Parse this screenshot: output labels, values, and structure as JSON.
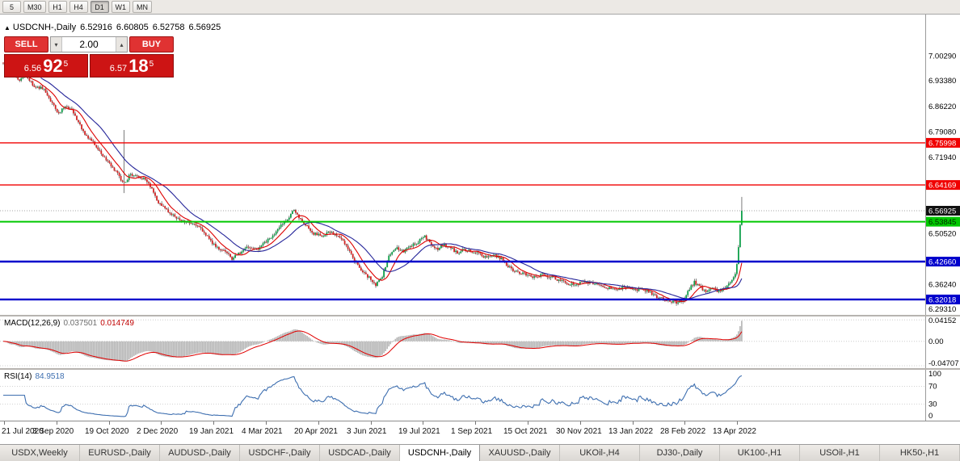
{
  "toolbar": {
    "timeframes": [
      {
        "label": "5",
        "active": false
      },
      {
        "label": "M30",
        "active": false
      },
      {
        "label": "H1",
        "active": false
      },
      {
        "label": "H4",
        "active": false
      },
      {
        "label": "D1",
        "active": true
      },
      {
        "label": "W1",
        "active": false
      },
      {
        "label": "MN",
        "active": false
      }
    ]
  },
  "chart": {
    "marker": "▲",
    "symbol_title": "USDCNH-,Daily",
    "ohlc": {
      "open": "6.52916",
      "high": "6.60805",
      "low": "6.52758",
      "close": "6.56925"
    }
  },
  "trade_panel": {
    "sell_label": "SELL",
    "buy_label": "BUY",
    "volume": "2.00",
    "volume_up_icon": "▴",
    "volume_down_icon": "▾",
    "sell_price": {
      "prefix": "6.56",
      "big": "92",
      "sup": "5"
    },
    "buy_price": {
      "prefix": "6.57",
      "big": "18",
      "sup": "5"
    }
  },
  "price_axis": {
    "ticks": [
      "7.00290",
      "6.93380",
      "6.86220",
      "6.79080",
      "6.71940",
      "6.50520",
      "6.36240",
      "6.29310"
    ],
    "current": {
      "value": "6.56925",
      "bg": "#111111",
      "fg": "#ffffff"
    }
  },
  "levels": [
    {
      "label": "6.75998",
      "value": 6.75998,
      "color": "#f00000",
      "text_color": "#ffffff",
      "width": 1.4
    },
    {
      "label": "6.64169",
      "value": 6.64169,
      "color": "#f00000",
      "text_color": "#ffffff",
      "width": 1.4
    },
    {
      "label": "6.53845",
      "value": 6.53845,
      "color": "#00c800",
      "text_color": "#002b00",
      "width": 2
    },
    {
      "label": "6.42660",
      "value": 6.4266,
      "color": "#0000cc",
      "text_color": "#ffffff",
      "width": 2.4
    },
    {
      "label": "6.32018",
      "value": 6.32018,
      "color": "#0000cc",
      "text_color": "#ffffff",
      "width": 2.4
    }
  ],
  "indicators": {
    "macd": {
      "name": "MACD(12,26,9)",
      "value_main": "0.037501",
      "value_signal": "0.014749",
      "axis": [
        {
          "label": "0.04152",
          "v": 0.04152
        },
        {
          "label": "0.00",
          "v": 0
        },
        {
          "label": "-0.04707",
          "v": -0.04707
        }
      ]
    },
    "rsi": {
      "name": "RSI(14)",
      "value": "84.9518",
      "axis": [
        "100",
        "70",
        "30",
        "0"
      ],
      "level_lines": [
        70,
        30
      ]
    }
  },
  "date_axis": [
    "21 Jul 2020",
    "3 Sep 2020",
    "19 Oct 2020",
    "2 Dec 2020",
    "19 Jan 2021",
    "4 Mar 2021",
    "20 Apr 2021",
    "3 Jun 2021",
    "19 Jul 2021",
    "1 Sep 2021",
    "15 Oct 2021",
    "30 Nov 2021",
    "13 Jan 2022",
    "28 Feb 2022",
    "13 Apr 2022"
  ],
  "tabs": [
    {
      "label": "USDX,Weekly",
      "active": false
    },
    {
      "label": "EURUSD-,Daily",
      "active": false
    },
    {
      "label": "AUDUSD-,Daily",
      "active": false
    },
    {
      "label": "USDCHF-,Daily",
      "active": false
    },
    {
      "label": "USDCAD-,Daily",
      "active": false
    },
    {
      "label": "USDCNH-,Daily",
      "active": true
    },
    {
      "label": "XAUUSD-,Daily",
      "active": false
    },
    {
      "label": "UKOil-,H4",
      "active": false
    },
    {
      "label": "DJ30-,Daily",
      "active": false
    },
    {
      "label": "UK100-,H1",
      "active": false
    },
    {
      "label": "USOil-,H1",
      "active": false
    },
    {
      "label": "HK50-,H1",
      "active": false
    }
  ],
  "chart_data": {
    "type": "candlestick",
    "symbol": "USDCNH",
    "timeframe": "Daily",
    "x_range_dates": [
      "21 Jul 2020",
      "13 Apr 2022"
    ],
    "price_axis_max": 7.12,
    "price_axis_min": 6.277,
    "count": 453,
    "seed": 12,
    "spike_index": 74,
    "spike_up": 0.145,
    "spike_down": 0.03,
    "last_candle": {
      "open": 6.52916,
      "high": 6.60805,
      "low": 6.52758,
      "close": 6.56925
    },
    "current_price": 6.56925,
    "ma_fast_period": 10,
    "ma_slow_period": 24,
    "macd_view": [
      0.048,
      -0.0517
    ],
    "rsi_last": 84.9518,
    "level_values": [
      6.75998,
      6.64169,
      6.53845,
      6.4266,
      6.32018
    ],
    "anchors": [
      [
        0,
        6.985
      ],
      [
        3,
        6.952
      ],
      [
        6,
        6.958
      ],
      [
        10,
        6.936
      ],
      [
        14,
        6.952
      ],
      [
        18,
        6.922
      ],
      [
        22,
        6.916
      ],
      [
        26,
        6.904
      ],
      [
        30,
        6.868
      ],
      [
        34,
        6.842
      ],
      [
        38,
        6.864
      ],
      [
        42,
        6.854
      ],
      [
        46,
        6.818
      ],
      [
        50,
        6.786
      ],
      [
        55,
        6.76
      ],
      [
        60,
        6.73
      ],
      [
        65,
        6.7
      ],
      [
        70,
        6.672
      ],
      [
        74,
        6.645
      ],
      [
        78,
        6.674
      ],
      [
        82,
        6.664
      ],
      [
        86,
        6.658
      ],
      [
        90,
        6.636
      ],
      [
        95,
        6.594
      ],
      [
        100,
        6.57
      ],
      [
        105,
        6.554
      ],
      [
        110,
        6.538
      ],
      [
        115,
        6.534
      ],
      [
        120,
        6.524
      ],
      [
        125,
        6.498
      ],
      [
        130,
        6.468
      ],
      [
        135,
        6.46
      ],
      [
        140,
        6.436
      ],
      [
        145,
        6.45
      ],
      [
        150,
        6.468
      ],
      [
        155,
        6.46
      ],
      [
        160,
        6.48
      ],
      [
        165,
        6.5
      ],
      [
        170,
        6.526
      ],
      [
        175,
        6.554
      ],
      [
        178,
        6.57
      ],
      [
        182,
        6.546
      ],
      [
        186,
        6.526
      ],
      [
        190,
        6.506
      ],
      [
        195,
        6.498
      ],
      [
        200,
        6.51
      ],
      [
        205,
        6.494
      ],
      [
        210,
        6.474
      ],
      [
        215,
        6.428
      ],
      [
        220,
        6.4
      ],
      [
        225,
        6.376
      ],
      [
        228,
        6.36
      ],
      [
        232,
        6.386
      ],
      [
        236,
        6.44
      ],
      [
        240,
        6.464
      ],
      [
        245,
        6.456
      ],
      [
        250,
        6.47
      ],
      [
        255,
        6.486
      ],
      [
        258,
        6.496
      ],
      [
        262,
        6.474
      ],
      [
        266,
        6.46
      ],
      [
        270,
        6.476
      ],
      [
        274,
        6.464
      ],
      [
        278,
        6.45
      ],
      [
        282,
        6.46
      ],
      [
        286,
        6.454
      ],
      [
        290,
        6.45
      ],
      [
        295,
        6.44
      ],
      [
        300,
        6.446
      ],
      [
        305,
        6.434
      ],
      [
        310,
        6.41
      ],
      [
        315,
        6.394
      ],
      [
        320,
        6.39
      ],
      [
        325,
        6.382
      ],
      [
        330,
        6.39
      ],
      [
        335,
        6.384
      ],
      [
        340,
        6.374
      ],
      [
        345,
        6.366
      ],
      [
        350,
        6.36
      ],
      [
        355,
        6.37
      ],
      [
        360,
        6.366
      ],
      [
        365,
        6.358
      ],
      [
        370,
        6.354
      ],
      [
        375,
        6.346
      ],
      [
        380,
        6.356
      ],
      [
        384,
        6.35
      ],
      [
        388,
        6.346
      ],
      [
        392,
        6.35
      ],
      [
        396,
        6.338
      ],
      [
        400,
        6.328
      ],
      [
        404,
        6.322
      ],
      [
        408,
        6.316
      ],
      [
        412,
        6.31
      ],
      [
        416,
        6.32
      ],
      [
        420,
        6.35
      ],
      [
        423,
        6.37
      ],
      [
        426,
        6.356
      ],
      [
        430,
        6.34
      ],
      [
        434,
        6.35
      ],
      [
        438,
        6.344
      ],
      [
        442,
        6.356
      ],
      [
        445,
        6.366
      ],
      [
        448,
        6.388
      ],
      [
        449,
        6.418
      ],
      [
        450,
        6.466
      ],
      [
        451,
        6.528
      ],
      [
        452,
        6.56925
      ]
    ]
  }
}
